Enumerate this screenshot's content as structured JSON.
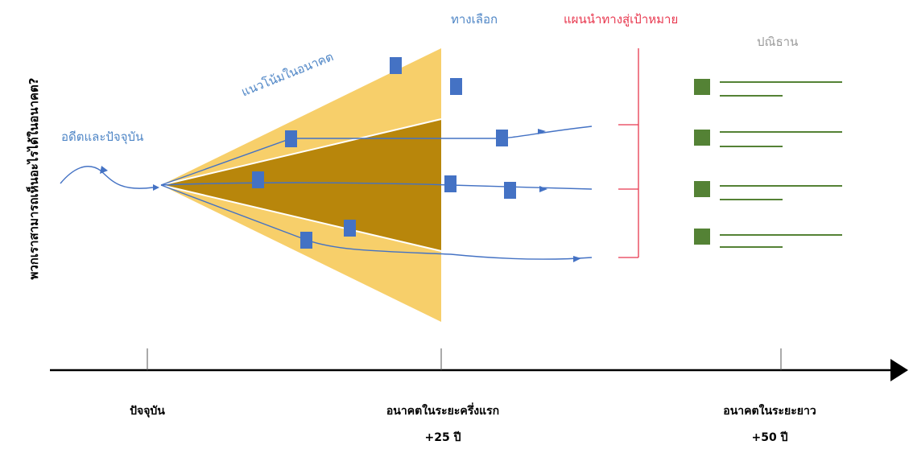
{
  "labels": {
    "y_axis_title": "พวกเราสามารถเห็นอะไรได้ในอนาคต?",
    "past_present": "อดีตและปัจจุบัน",
    "future_trends": "แนวโน้มในอนาคต",
    "options": "ทางเลือก",
    "roadmap": "แผนนำทางสู่เป้าหมาย",
    "manifesto": "ปณิธาน"
  },
  "timeline": [
    {
      "label": "ปัจจุบัน",
      "sublabel": ""
    },
    {
      "label": "อนาคตในระยะครึ่งแรก",
      "sublabel": "+25 ปี"
    },
    {
      "label": "อนาคตในระยะยาว",
      "sublabel": "+50 ปี"
    }
  ],
  "colors": {
    "cone_outer": "#f7cf6a",
    "cone_inner": "#b8860b",
    "node_blue": "#4472c4",
    "node_green": "#548235",
    "line_blue": "#4472c4",
    "bracket_red": "#e8384f",
    "axis": "#000000",
    "manifesto_line": "#548235"
  }
}
